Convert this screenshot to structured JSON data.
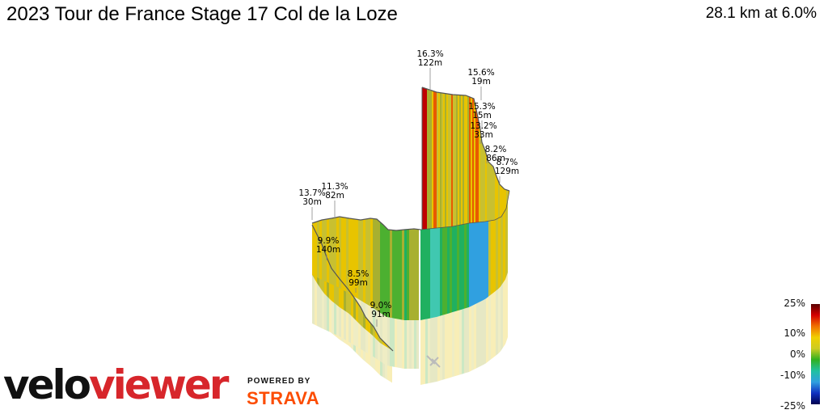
{
  "header": {
    "title": "2023 Tour de France Stage 17 Col de la Loze",
    "summary": "28.1 km at 6.0%"
  },
  "chart_data": {
    "type": "3d-elevation-profile",
    "annotations": [
      {
        "grade": "16.3%",
        "length": "122m"
      },
      {
        "grade": "15.6%",
        "length": "19m"
      },
      {
        "grade": "15.3%",
        "length": "15m"
      },
      {
        "grade": "13.2%",
        "length": "33m"
      },
      {
        "grade": "8.2%",
        "length": "86m"
      },
      {
        "grade": "8.7%",
        "length": "129m"
      },
      {
        "grade": "13.7%",
        "length": "30m"
      },
      {
        "grade": "11.3%",
        "length": "82m"
      },
      {
        "grade": "9.9%",
        "length": "140m"
      },
      {
        "grade": "8.5%",
        "length": "99m"
      },
      {
        "grade": "9.0%",
        "length": "91m"
      }
    ],
    "legend": {
      "labels": [
        "25%",
        "10%",
        "0%",
        "-10%",
        "-25%"
      ],
      "values": [
        25,
        10,
        0,
        -10,
        -25
      ],
      "colors": [
        "#5a0000",
        "#d40000",
        "#f07000",
        "#f0d000",
        "#cccc22",
        "#30b020",
        "#20c0a0",
        "#30a0e0",
        "#1030c0",
        "#000050"
      ]
    }
  },
  "branding": {
    "logo_part1": "velo",
    "logo_part2": "viewer",
    "powered_by": "POWERED BY",
    "strava": "STRAVA"
  }
}
